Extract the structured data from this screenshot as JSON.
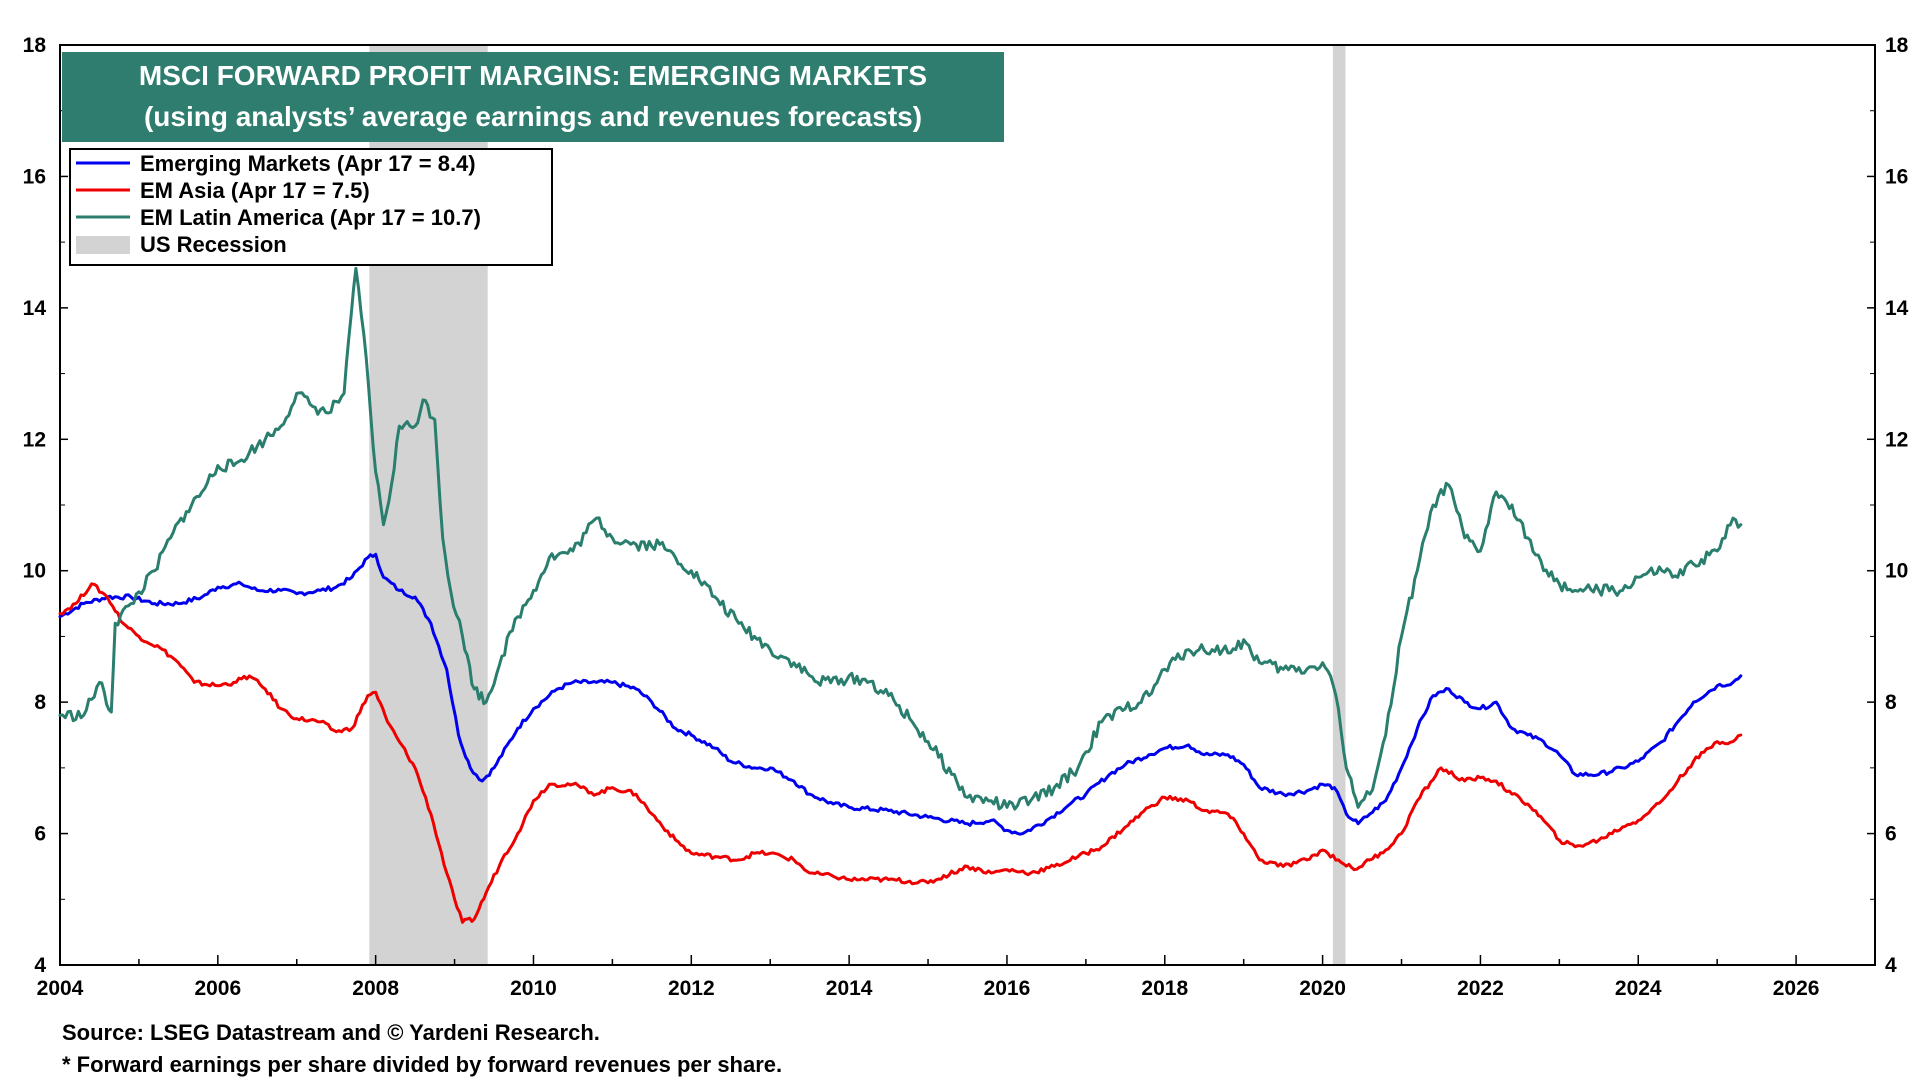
{
  "chart_data": {
    "type": "line",
    "title": "MSCI FORWARD PROFIT MARGINS: EMERGING MARKETS",
    "subtitle": "(using analysts’ average earnings and revenues forecasts)",
    "xlabel": "",
    "ylabel": "",
    "xlim": [
      2004,
      2027
    ],
    "ylim": [
      4,
      18
    ],
    "x_ticks": [
      "2004",
      "2006",
      "2008",
      "2010",
      "2012",
      "2014",
      "2016",
      "2018",
      "2020",
      "2022",
      "2024",
      "2026"
    ],
    "y_ticks": [
      "4",
      "6",
      "8",
      "10",
      "12",
      "14",
      "16",
      "18"
    ],
    "grid": false,
    "legend_position": "top-left",
    "recessions": [
      {
        "name": "US Recession",
        "start": 2007.92,
        "end": 2009.42,
        "color": "#d3d3d3"
      },
      {
        "name": "US Recession",
        "start": 2020.13,
        "end": 2020.29,
        "color": "#d3d3d3"
      }
    ],
    "series": [
      {
        "name": "Emerging Markets (Apr 17 = 8.4)",
        "color": "#0000ee",
        "points": [
          [
            2004.0,
            9.3
          ],
          [
            2004.3,
            9.5
          ],
          [
            2004.6,
            9.6
          ],
          [
            2004.9,
            9.6
          ],
          [
            2005.2,
            9.5
          ],
          [
            2005.5,
            9.5
          ],
          [
            2005.8,
            9.6
          ],
          [
            2006.0,
            9.75
          ],
          [
            2006.3,
            9.8
          ],
          [
            2006.5,
            9.7
          ],
          [
            2006.8,
            9.7
          ],
          [
            2007.0,
            9.65
          ],
          [
            2007.3,
            9.7
          ],
          [
            2007.5,
            9.75
          ],
          [
            2007.7,
            9.9
          ],
          [
            2007.9,
            10.2
          ],
          [
            2008.0,
            10.25
          ],
          [
            2008.1,
            9.9
          ],
          [
            2008.3,
            9.7
          ],
          [
            2008.5,
            9.6
          ],
          [
            2008.7,
            9.2
          ],
          [
            2008.9,
            8.5
          ],
          [
            2009.05,
            7.5
          ],
          [
            2009.2,
            7.0
          ],
          [
            2009.35,
            6.8
          ],
          [
            2009.5,
            7.0
          ],
          [
            2009.8,
            7.6
          ],
          [
            2010.0,
            7.9
          ],
          [
            2010.3,
            8.2
          ],
          [
            2010.5,
            8.3
          ],
          [
            2010.8,
            8.3
          ],
          [
            2011.0,
            8.3
          ],
          [
            2011.3,
            8.2
          ],
          [
            2011.5,
            8.0
          ],
          [
            2011.8,
            7.6
          ],
          [
            2012.0,
            7.5
          ],
          [
            2012.3,
            7.3
          ],
          [
            2012.5,
            7.1
          ],
          [
            2012.8,
            7.0
          ],
          [
            2013.0,
            7.0
          ],
          [
            2013.3,
            6.8
          ],
          [
            2013.5,
            6.6
          ],
          [
            2013.8,
            6.45
          ],
          [
            2014.0,
            6.4
          ],
          [
            2014.5,
            6.35
          ],
          [
            2015.0,
            6.25
          ],
          [
            2015.5,
            6.15
          ],
          [
            2015.8,
            6.2
          ],
          [
            2016.0,
            6.05
          ],
          [
            2016.2,
            6.0
          ],
          [
            2016.5,
            6.2
          ],
          [
            2016.8,
            6.45
          ],
          [
            2017.0,
            6.6
          ],
          [
            2017.3,
            6.9
          ],
          [
            2017.5,
            7.05
          ],
          [
            2017.8,
            7.2
          ],
          [
            2018.0,
            7.3
          ],
          [
            2018.3,
            7.35
          ],
          [
            2018.5,
            7.2
          ],
          [
            2018.8,
            7.2
          ],
          [
            2019.0,
            7.05
          ],
          [
            2019.2,
            6.7
          ],
          [
            2019.5,
            6.6
          ],
          [
            2019.8,
            6.65
          ],
          [
            2020.0,
            6.75
          ],
          [
            2020.15,
            6.7
          ],
          [
            2020.3,
            6.3
          ],
          [
            2020.45,
            6.15
          ],
          [
            2020.6,
            6.3
          ],
          [
            2020.8,
            6.5
          ],
          [
            2021.0,
            7.0
          ],
          [
            2021.2,
            7.6
          ],
          [
            2021.4,
            8.1
          ],
          [
            2021.6,
            8.2
          ],
          [
            2021.8,
            8.0
          ],
          [
            2022.0,
            7.9
          ],
          [
            2022.2,
            8.0
          ],
          [
            2022.4,
            7.6
          ],
          [
            2022.6,
            7.5
          ],
          [
            2022.8,
            7.4
          ],
          [
            2023.0,
            7.2
          ],
          [
            2023.2,
            6.9
          ],
          [
            2023.5,
            6.9
          ],
          [
            2023.8,
            7.0
          ],
          [
            2024.0,
            7.1
          ],
          [
            2024.3,
            7.4
          ],
          [
            2024.5,
            7.7
          ],
          [
            2024.7,
            8.0
          ],
          [
            2025.0,
            8.25
          ],
          [
            2025.2,
            8.3
          ],
          [
            2025.3,
            8.4
          ]
        ]
      },
      {
        "name": "EM Asia (Apr 17 = 7.5)",
        "color": "#ee0000",
        "points": [
          [
            2004.0,
            9.35
          ],
          [
            2004.2,
            9.5
          ],
          [
            2004.4,
            9.8
          ],
          [
            2004.6,
            9.6
          ],
          [
            2004.8,
            9.2
          ],
          [
            2005.0,
            9.0
          ],
          [
            2005.3,
            8.8
          ],
          [
            2005.5,
            8.6
          ],
          [
            2005.7,
            8.3
          ],
          [
            2006.0,
            8.25
          ],
          [
            2006.2,
            8.3
          ],
          [
            2006.4,
            8.4
          ],
          [
            2006.6,
            8.2
          ],
          [
            2006.8,
            7.9
          ],
          [
            2007.0,
            7.75
          ],
          [
            2007.3,
            7.7
          ],
          [
            2007.5,
            7.55
          ],
          [
            2007.7,
            7.6
          ],
          [
            2007.9,
            8.1
          ],
          [
            2008.0,
            8.15
          ],
          [
            2008.15,
            7.7
          ],
          [
            2008.3,
            7.4
          ],
          [
            2008.5,
            7.0
          ],
          [
            2008.7,
            6.3
          ],
          [
            2008.9,
            5.4
          ],
          [
            2009.0,
            5.0
          ],
          [
            2009.1,
            4.65
          ],
          [
            2009.25,
            4.7
          ],
          [
            2009.4,
            5.1
          ],
          [
            2009.6,
            5.6
          ],
          [
            2009.8,
            6.0
          ],
          [
            2010.0,
            6.5
          ],
          [
            2010.2,
            6.75
          ],
          [
            2010.5,
            6.75
          ],
          [
            2010.8,
            6.6
          ],
          [
            2011.0,
            6.7
          ],
          [
            2011.3,
            6.6
          ],
          [
            2011.5,
            6.3
          ],
          [
            2011.8,
            5.9
          ],
          [
            2012.0,
            5.7
          ],
          [
            2012.3,
            5.65
          ],
          [
            2012.6,
            5.6
          ],
          [
            2012.8,
            5.7
          ],
          [
            2013.0,
            5.7
          ],
          [
            2013.3,
            5.6
          ],
          [
            2013.5,
            5.4
          ],
          [
            2013.8,
            5.35
          ],
          [
            2014.0,
            5.3
          ],
          [
            2014.5,
            5.3
          ],
          [
            2015.0,
            5.25
          ],
          [
            2015.5,
            5.5
          ],
          [
            2015.8,
            5.4
          ],
          [
            2016.0,
            5.45
          ],
          [
            2016.3,
            5.4
          ],
          [
            2016.6,
            5.5
          ],
          [
            2016.9,
            5.65
          ],
          [
            2017.2,
            5.8
          ],
          [
            2017.5,
            6.1
          ],
          [
            2017.8,
            6.4
          ],
          [
            2018.0,
            6.55
          ],
          [
            2018.3,
            6.5
          ],
          [
            2018.5,
            6.35
          ],
          [
            2018.8,
            6.3
          ],
          [
            2019.0,
            6.0
          ],
          [
            2019.2,
            5.6
          ],
          [
            2019.5,
            5.5
          ],
          [
            2019.8,
            5.6
          ],
          [
            2020.0,
            5.75
          ],
          [
            2020.2,
            5.6
          ],
          [
            2020.4,
            5.45
          ],
          [
            2020.6,
            5.6
          ],
          [
            2020.8,
            5.75
          ],
          [
            2021.0,
            6.0
          ],
          [
            2021.2,
            6.5
          ],
          [
            2021.5,
            7.0
          ],
          [
            2021.8,
            6.8
          ],
          [
            2022.0,
            6.85
          ],
          [
            2022.2,
            6.8
          ],
          [
            2022.4,
            6.6
          ],
          [
            2022.6,
            6.45
          ],
          [
            2022.8,
            6.2
          ],
          [
            2023.0,
            5.9
          ],
          [
            2023.2,
            5.8
          ],
          [
            2023.5,
            5.9
          ],
          [
            2023.8,
            6.1
          ],
          [
            2024.0,
            6.2
          ],
          [
            2024.3,
            6.5
          ],
          [
            2024.5,
            6.8
          ],
          [
            2024.7,
            7.1
          ],
          [
            2025.0,
            7.4
          ],
          [
            2025.2,
            7.4
          ],
          [
            2025.3,
            7.5
          ]
        ]
      },
      {
        "name": "EM Latin America (Apr 17 = 10.7)",
        "color": "#2a7e6e",
        "points": [
          [
            2004.0,
            7.8
          ],
          [
            2004.3,
            7.8
          ],
          [
            2004.5,
            8.3
          ],
          [
            2004.65,
            7.85
          ],
          [
            2004.7,
            9.2
          ],
          [
            2004.9,
            9.5
          ],
          [
            2005.2,
            10.0
          ],
          [
            2005.4,
            10.5
          ],
          [
            2005.6,
            10.9
          ],
          [
            2005.8,
            11.2
          ],
          [
            2006.0,
            11.6
          ],
          [
            2006.2,
            11.6
          ],
          [
            2006.4,
            11.8
          ],
          [
            2006.6,
            12.0
          ],
          [
            2006.8,
            12.2
          ],
          [
            2007.0,
            12.7
          ],
          [
            2007.2,
            12.5
          ],
          [
            2007.4,
            12.4
          ],
          [
            2007.6,
            12.7
          ],
          [
            2007.75,
            14.6
          ],
          [
            2007.85,
            13.6
          ],
          [
            2008.0,
            11.5
          ],
          [
            2008.1,
            10.7
          ],
          [
            2008.2,
            11.3
          ],
          [
            2008.3,
            12.2
          ],
          [
            2008.5,
            12.2
          ],
          [
            2008.6,
            12.6
          ],
          [
            2008.75,
            12.3
          ],
          [
            2008.85,
            10.5
          ],
          [
            2008.95,
            9.7
          ],
          [
            2009.1,
            9.0
          ],
          [
            2009.25,
            8.2
          ],
          [
            2009.4,
            8.0
          ],
          [
            2009.6,
            8.7
          ],
          [
            2009.8,
            9.3
          ],
          [
            2010.0,
            9.7
          ],
          [
            2010.2,
            10.2
          ],
          [
            2010.5,
            10.3
          ],
          [
            2010.8,
            10.8
          ],
          [
            2011.0,
            10.5
          ],
          [
            2011.3,
            10.4
          ],
          [
            2011.6,
            10.4
          ],
          [
            2011.8,
            10.2
          ],
          [
            2012.0,
            10.0
          ],
          [
            2012.3,
            9.6
          ],
          [
            2012.6,
            9.2
          ],
          [
            2012.8,
            9.0
          ],
          [
            2013.0,
            8.8
          ],
          [
            2013.3,
            8.6
          ],
          [
            2013.6,
            8.3
          ],
          [
            2013.9,
            8.35
          ],
          [
            2014.2,
            8.35
          ],
          [
            2014.5,
            8.1
          ],
          [
            2014.8,
            7.7
          ],
          [
            2015.0,
            7.4
          ],
          [
            2015.3,
            6.9
          ],
          [
            2015.5,
            6.55
          ],
          [
            2015.8,
            6.5
          ],
          [
            2016.0,
            6.4
          ],
          [
            2016.3,
            6.5
          ],
          [
            2016.6,
            6.7
          ],
          [
            2016.9,
            7.0
          ],
          [
            2017.2,
            7.7
          ],
          [
            2017.5,
            7.9
          ],
          [
            2017.8,
            8.1
          ],
          [
            2018.0,
            8.5
          ],
          [
            2018.3,
            8.8
          ],
          [
            2018.6,
            8.8
          ],
          [
            2018.9,
            8.8
          ],
          [
            2019.0,
            8.95
          ],
          [
            2019.2,
            8.6
          ],
          [
            2019.5,
            8.5
          ],
          [
            2019.8,
            8.5
          ],
          [
            2020.0,
            8.6
          ],
          [
            2020.1,
            8.4
          ],
          [
            2020.2,
            7.9
          ],
          [
            2020.3,
            7.0
          ],
          [
            2020.45,
            6.4
          ],
          [
            2020.6,
            6.6
          ],
          [
            2020.8,
            7.5
          ],
          [
            2021.0,
            9.0
          ],
          [
            2021.2,
            10.0
          ],
          [
            2021.4,
            11.0
          ],
          [
            2021.6,
            11.3
          ],
          [
            2021.8,
            10.5
          ],
          [
            2022.0,
            10.3
          ],
          [
            2022.2,
            11.2
          ],
          [
            2022.4,
            11.0
          ],
          [
            2022.6,
            10.5
          ],
          [
            2022.8,
            10.0
          ],
          [
            2023.0,
            9.8
          ],
          [
            2023.2,
            9.7
          ],
          [
            2023.5,
            9.7
          ],
          [
            2023.8,
            9.7
          ],
          [
            2024.0,
            9.9
          ],
          [
            2024.3,
            10.0
          ],
          [
            2024.5,
            9.9
          ],
          [
            2024.7,
            10.1
          ],
          [
            2025.0,
            10.3
          ],
          [
            2025.1,
            10.5
          ],
          [
            2025.2,
            10.8
          ],
          [
            2025.3,
            10.7
          ]
        ]
      }
    ]
  },
  "legend": {
    "items": [
      {
        "label": "Emerging Markets (Apr 17 = 8.4)",
        "color": "#0000ee"
      },
      {
        "label": "EM Asia (Apr 17 = 7.5)",
        "color": "#ee0000"
      },
      {
        "label": "EM Latin America (Apr 17 = 10.7)",
        "color": "#2a7e6e"
      },
      {
        "label": "US Recession",
        "color": "#d3d3d3"
      }
    ]
  },
  "footnotes": {
    "source": "Source: LSEG Datastream and © Yardeni Research.",
    "note": "* Forward earnings per share divided by forward revenues per share."
  },
  "colors": {
    "title_bg": "#2e7d6e",
    "title_text": "#ffffff"
  }
}
